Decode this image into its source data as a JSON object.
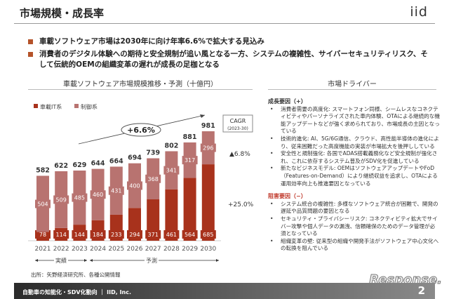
{
  "header": {
    "title": "市場規模・成長率",
    "logo": "iid"
  },
  "bullets": [
    "車載ソフトウェア市場は2030年に向け年率6.6%で拡大する見込み",
    "消費者のデジタル体験への期待と安全規制が追い風となる一方、システムの複雑性、サイバーセキュリティリスク、そして伝統的OEMの組織変革の遅れが成長の足枷となる"
  ],
  "chart_section_title": "車載ソフトウェア市場規模推移・予測（十億円）",
  "drivers": {
    "title": "市場ドライバー",
    "positive_title": "成長要因（+）",
    "positive": [
      "消費者需要の高度化: スマートフォン同様、シームレスなコネクティビティやパーソナライズされた車内体験、OTAによる継続的な機能アップデートなどが強く求められており、市場成長の主因となっている",
      "技術的進化: AI、5G/6G通信、クラウド、高性能半導体の進化により、従来困難だった高度機能の実装が市場拡大を後押ししている",
      "安全性と規制強化: 各国でADAS搭載義務化など安全規制が強化され、これに依存するシステム普及がSDV化を促進している",
      "新たなビジネスモデル: OEMはソフトウェアアップデートやFoD（Features-on-Demand）により継続収益を追求し、OTAによる運用効率向上も推進要因となっている"
    ],
    "negative_title": "阻害要因（−）",
    "negative": [
      "システム統合の複雑性: 多様なソフトウェア統合が困難で、開発の遅延や品質問題の要因となる",
      "セキュリティ・プライバシーリスク: コネクティビティ拡大でサイバー攻撃や個人データの漏洩、信頼確保のためのデータ管理が必須となっている",
      "組織変革の壁: 従来型の組織や開発手法がソフトウェア中心文化への転換を阻んでいる"
    ]
  },
  "chart_data": {
    "type": "bar",
    "stacked": true,
    "categories": [
      "2021",
      "2022",
      "2023",
      "2024",
      "2025",
      "2026",
      "2027",
      "2028",
      "2029",
      "2030"
    ],
    "series": [
      {
        "name": "車載IT系",
        "color": "#a8321c",
        "values": [
          78,
          114,
          144,
          184,
          233,
          294,
          371,
          461,
          564,
          685
        ]
      },
      {
        "name": "制御系",
        "color": "#b87370",
        "values": [
          504,
          509,
          485,
          460,
          431,
          400,
          368,
          341,
          317,
          296
        ]
      }
    ],
    "totals": [
      582,
      622,
      629,
      644,
      664,
      694,
      739,
      802,
      881,
      981
    ],
    "annotations": {
      "overall_cagr": "+6.6%",
      "cagr_box_title": "CAGR",
      "cagr_box_period": "(2023-30)",
      "control_cagr": "▲6.8%",
      "it_cagr": "+25.0%",
      "actual_label": "実績",
      "forecast_label": "予測"
    }
  },
  "source": "出所：矢野経済研究所、各種公開情報",
  "footer": {
    "text": "自動車の知能化・SDV化動向 ｜ IID, Inc.",
    "page": "2",
    "watermark": "Response."
  }
}
